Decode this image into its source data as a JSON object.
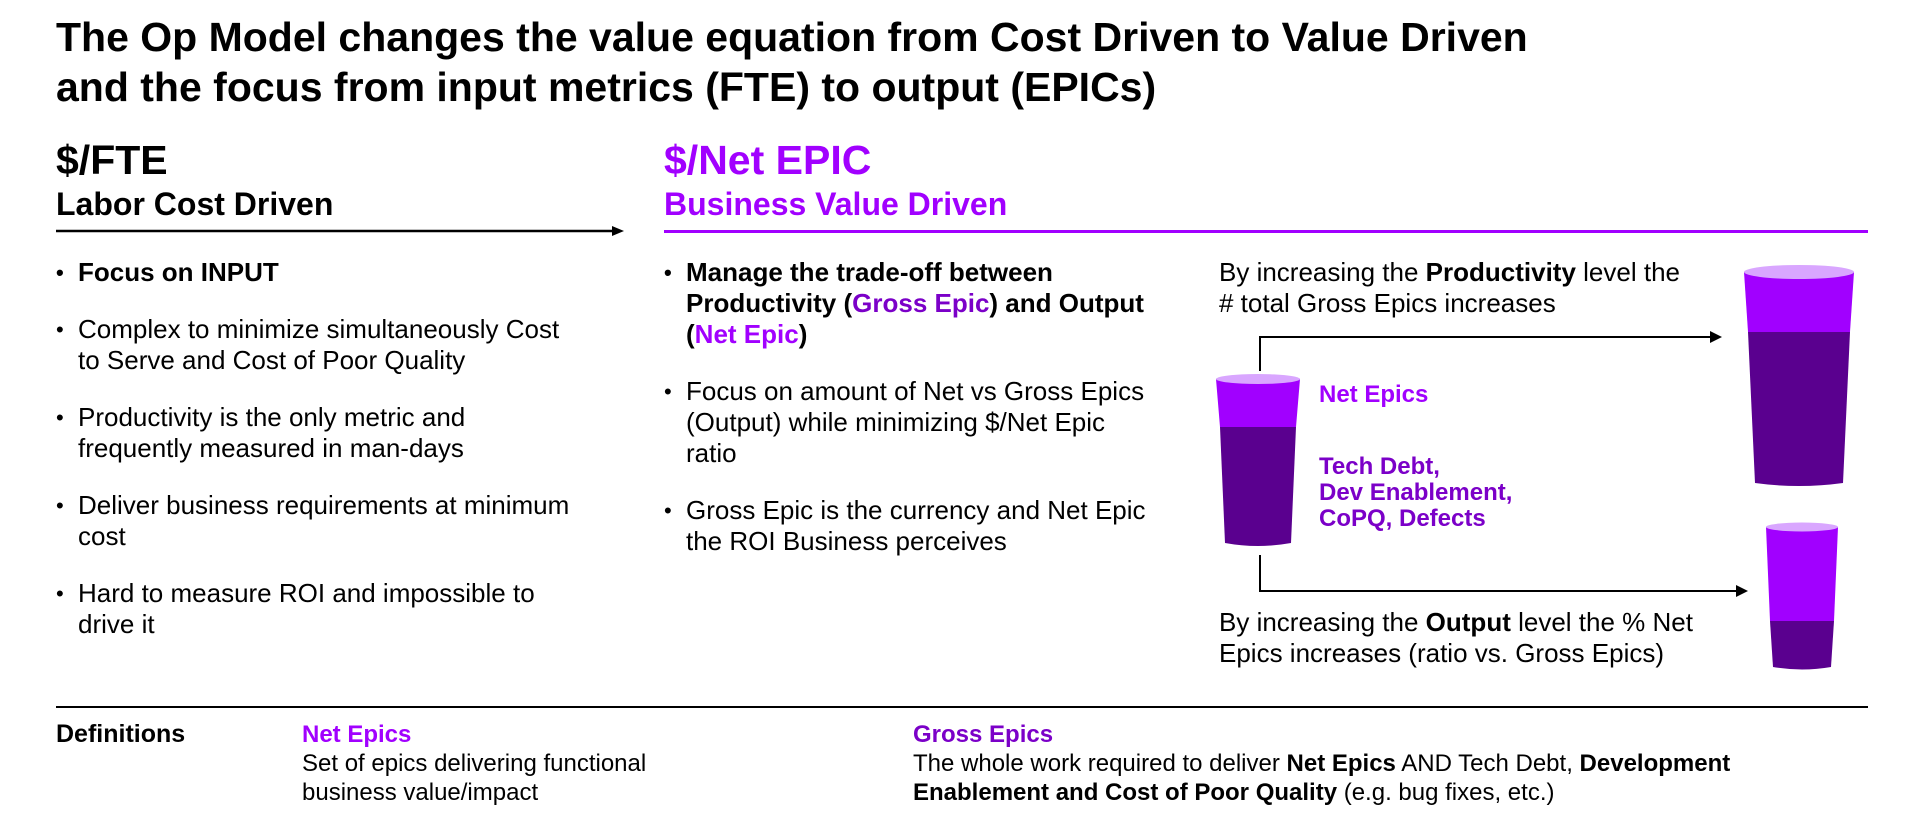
{
  "title": {
    "line1": "The Op Model changes the value equation from Cost Driven to Value Driven",
    "line2": "and the focus from input metrics (FTE) to output (EPICs)"
  },
  "left": {
    "heading": "$/FTE",
    "subheading": "Labor Cost Driven",
    "bullets": [
      "Focus on INPUT",
      "Complex to minimize simultaneously Cost to Serve and Cost of Poor Quality",
      "Productivity is the only metric and frequently measured in man-days",
      "Deliver business requirements at minimum cost",
      "Hard to measure ROI and impossible to drive it"
    ]
  },
  "right": {
    "heading": "$/Net EPIC",
    "subheading": "Business Value Driven",
    "bullet1": {
      "pre": "Manage the trade-off between Productivity (",
      "gross": "Gross Epic",
      "mid": ") and Output (",
      "net": "Net Epic",
      "post": ")"
    },
    "bullets": [
      "Focus on amount of Net vs Gross Epics (Output) while minimizing $/Net Epic ratio",
      "Gross Epic is the currency and Net Epic the ROI Business perceives"
    ]
  },
  "diagram": {
    "productivity_note": {
      "pre": "By increasing the ",
      "bold": "Productivity",
      "post": " level the # total Gross Epics increases"
    },
    "output_note": {
      "pre": "By increasing the ",
      "bold": "Output",
      "post": " level the % Net Epics increases (ratio vs. Gross Epics)"
    },
    "legend_net": "Net Epics",
    "legend_other": [
      "Tech Debt,",
      "Dev Enablement,",
      "CoPQ, Defects"
    ]
  },
  "definitions": {
    "label": "Definitions",
    "net": {
      "heading": "Net Epics",
      "text": "Set of epics delivering functional business value/impact"
    },
    "gross": {
      "heading": "Gross Epics",
      "t1": "The whole work required to deliver ",
      "b1": "Net Epics",
      "t2": " AND Tech Debt, ",
      "b2": "Development Enablement and Cost of Poor Quality",
      "t3": " (e.g. bug fixes, etc.)"
    }
  },
  "colors": {
    "accent": "#a100ff",
    "dark_purple": "#7b00c8",
    "cup_dark": "#5a008f",
    "cup_light": "#a100ff",
    "cup_rim": "#d9a6ff"
  }
}
